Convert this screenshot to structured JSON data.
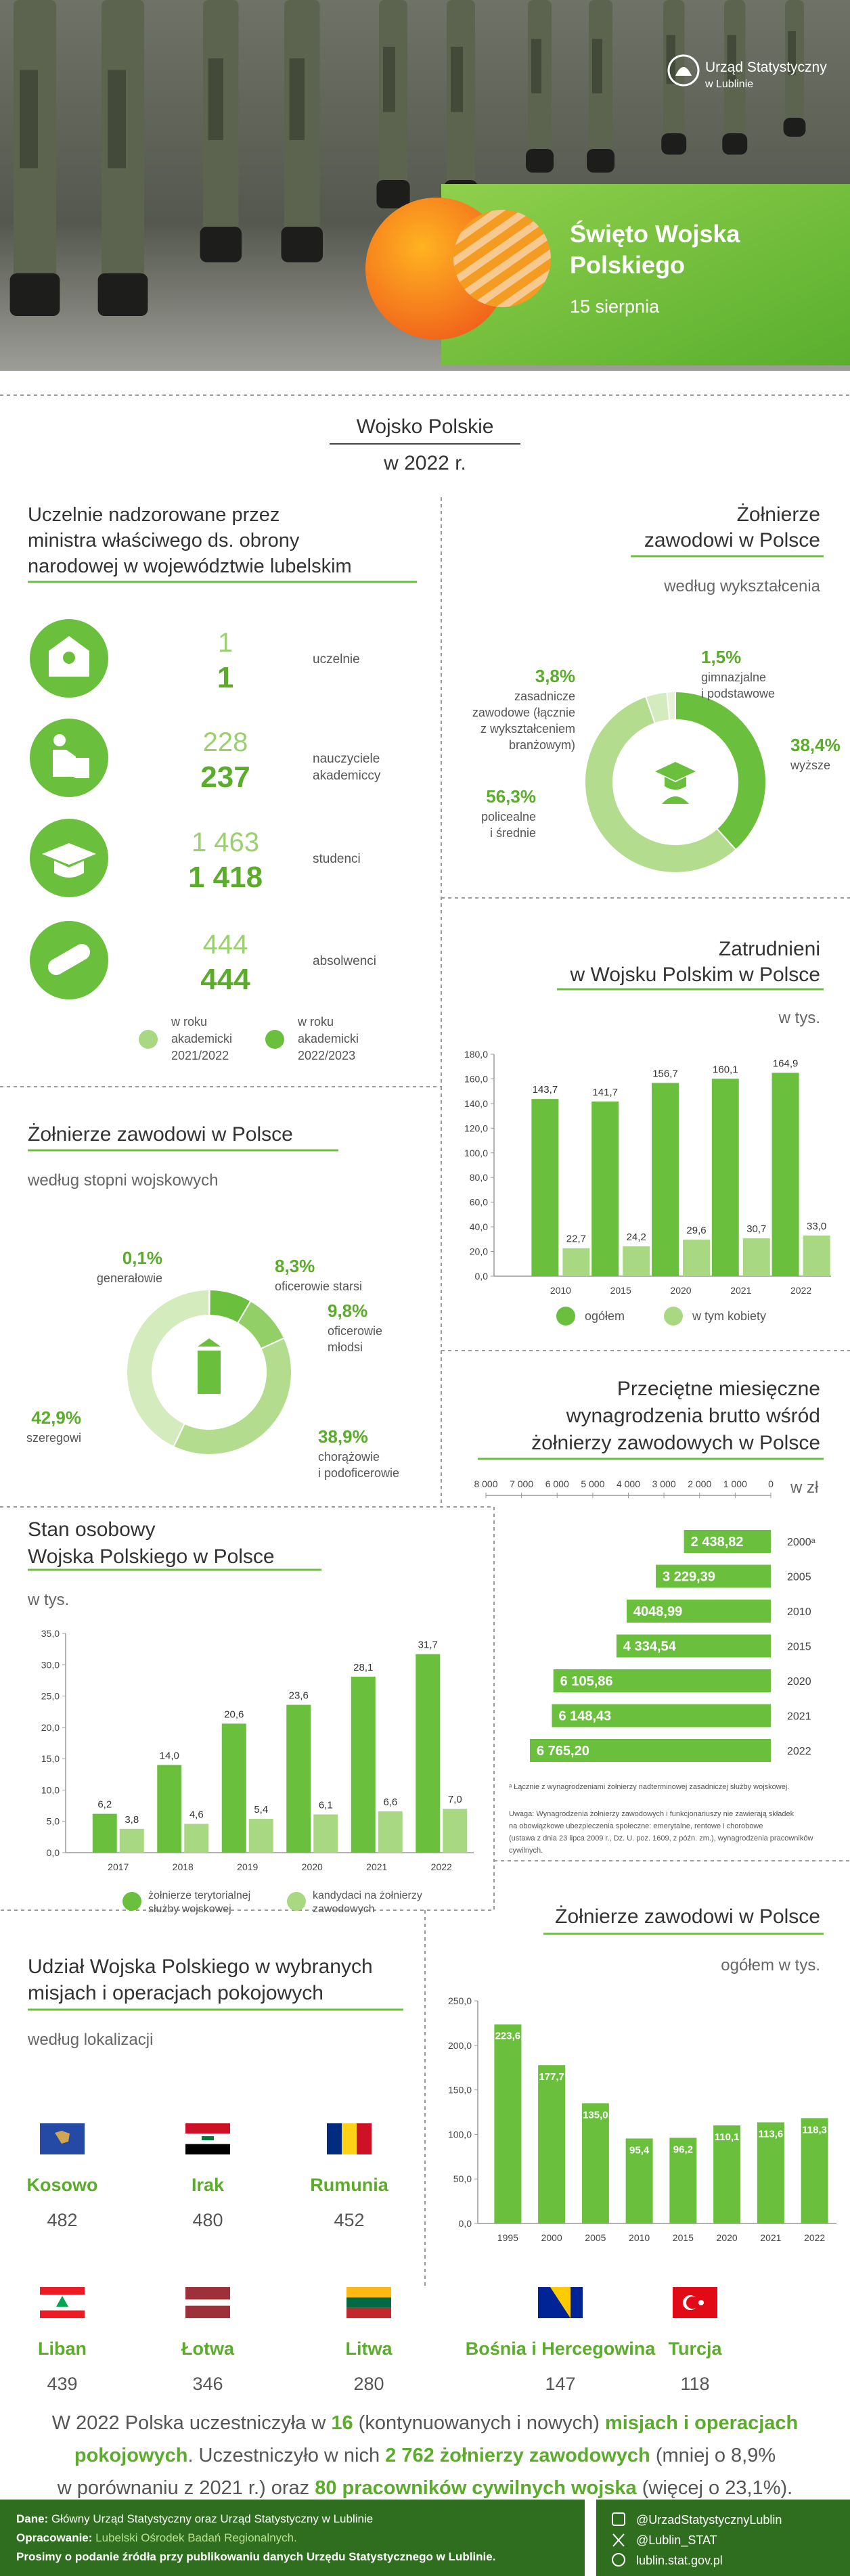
{
  "header": {
    "logo": [
      "Urząd Statystyczny",
      "w Lublinie"
    ],
    "title": [
      "Święto Wojska",
      "Polskiego"
    ],
    "date": "15 sierpnia"
  },
  "intro": [
    "Wojsko Polskie",
    "w 2022 r."
  ],
  "universities": {
    "title": [
      "Uczelnie nadzorowane przez",
      "ministra właściwego ds. obrony",
      "narodowej w województwie lubelskim"
    ],
    "rows": [
      {
        "prev": "1",
        "curr": "1",
        "label": [
          "uczelnie"
        ]
      },
      {
        "prev": "228",
        "curr": "237",
        "label": [
          "nauczyciele",
          "akademiccy"
        ]
      },
      {
        "prev": "1 463",
        "curr": "1 418",
        "label": [
          "studenci"
        ]
      },
      {
        "prev": "444",
        "curr": "444",
        "label": [
          "absolwenci"
        ]
      }
    ],
    "legend": [
      [
        "w roku",
        "akademicki",
        "2021/2022"
      ],
      [
        "w roku",
        "akademicki",
        "2022/2023"
      ]
    ]
  },
  "chart_data": [
    {
      "type": "donut",
      "title": [
        "Żołnierze",
        "zawodowi w Polsce"
      ],
      "subtitle": "według wykształcenia",
      "categories": [
        [
          "wyższe"
        ],
        [
          "policealne",
          "i średnie"
        ],
        [
          "zasadnicze",
          "zawodowe (łącznie",
          "z wykształceniem",
          "branżowym)"
        ],
        [
          "gimnazjalne",
          "i podstawowe"
        ]
      ],
      "values": [
        38.4,
        56.3,
        3.8,
        1.5
      ],
      "value_labels": [
        "38,4%",
        "56,3%",
        "3,8%",
        "1,5%"
      ],
      "colors": [
        "#6abf3c",
        "#b4dc8f",
        "#d3ebbd",
        "#e6f3d9"
      ]
    },
    {
      "type": "bar",
      "title": [
        "Zatrudnieni",
        "w Wojsku Polskim w Polsce"
      ],
      "unit": "w tys.",
      "categories": [
        "2010",
        "2015",
        "2020",
        "2021",
        "2022"
      ],
      "series": [
        {
          "name": "ogółem",
          "color": "#6abf3c",
          "values": [
            143.7,
            141.7,
            156.7,
            160.1,
            164.9
          ],
          "value_labels": [
            "143,7",
            "141,7",
            "156,7",
            "160,1",
            "164,9"
          ]
        },
        {
          "name": "w tym kobiety",
          "color": "#a9d883",
          "values": [
            22.7,
            24.2,
            29.6,
            30.7,
            33.0
          ],
          "value_labels": [
            "22,7",
            "24,2",
            "29,6",
            "30,7",
            "33,0"
          ]
        }
      ],
      "ylim": [
        0,
        180
      ],
      "yticks": [
        {
          "value": 0,
          "label": "0,0"
        },
        {
          "value": 20,
          "label": "20,0"
        },
        {
          "value": 40,
          "label": "40,0"
        },
        {
          "value": 60,
          "label": "60,0"
        },
        {
          "value": 80,
          "label": "80,0"
        },
        {
          "value": 100,
          "label": "100,0"
        },
        {
          "value": 120,
          "label": "120,0"
        },
        {
          "value": 140,
          "label": "140,0"
        },
        {
          "value": 160,
          "label": "160,0"
        },
        {
          "value": 180,
          "label": "180,0"
        }
      ],
      "label_position": "above"
    },
    {
      "type": "donut",
      "title": [
        "Żołnierze zawodowi w Polsce"
      ],
      "subtitle": "według stopni wojskowych",
      "categories": [
        [
          "generałowie"
        ],
        [
          "oficerowie starsi"
        ],
        [
          "oficerowie",
          "młodsi"
        ],
        [
          "chorążowie",
          "i podoficerowie"
        ],
        [
          "szeregowi"
        ]
      ],
      "values": [
        0.1,
        8.3,
        9.8,
        38.9,
        42.9
      ],
      "value_labels": [
        "0,1%",
        "8,3%",
        "9,8%",
        "38,9%",
        "42,9%"
      ],
      "colors": [
        "#3f8a22",
        "#6abf3c",
        "#92cf66",
        "#b4dc8f",
        "#d3ebbd"
      ]
    },
    {
      "type": "hbar",
      "title": [
        "Przeciętne miesięczne",
        "wynagrodzenia brutto wśród",
        "żołnierzy zawodowych w Polsce"
      ],
      "unit": "w zł",
      "categories": [
        "2000ᵃ",
        "2005",
        "2010",
        "2015",
        "2020",
        "2021",
        "2022"
      ],
      "values": [
        2438.82,
        3229.39,
        4048.99,
        4334.54,
        6105.86,
        6148.43,
        6765.2
      ],
      "value_labels": [
        "2 438,82",
        "3 229,39",
        "4048,99",
        "4 334,54",
        "6 105,86",
        "6 148,43",
        "6 765,20"
      ],
      "color": "#6abf3c",
      "xlim": [
        8000,
        0
      ],
      "xticks": [
        {
          "value": 8000,
          "label": "8 000"
        },
        {
          "value": 7000,
          "label": "7 000"
        },
        {
          "value": 6000,
          "label": "6 000"
        },
        {
          "value": 5000,
          "label": "5 000"
        },
        {
          "value": 4000,
          "label": "4 000"
        },
        {
          "value": 3000,
          "label": "3 000"
        },
        {
          "value": 2000,
          "label": "2 000"
        },
        {
          "value": 1000,
          "label": "1 000"
        },
        0
      ],
      "notes": [
        "ᵃ Łącznie z wynagrodzeniami żołnierzy nadterminowej zasadniczej służby wojskowej.",
        "Uwaga: Wynagrodzenia żołnierzy zawodowych i funkcjonariuszy nie zawierają składek",
        "na obowiązkowe ubezpieczenia społeczne: emerytalne, rentowe i chorobowe",
        "(ustawa z dnia 23 lipca 2009 r., Dz. U. poz. 1609, z późn. zm.), wynagrodzenia pracowników",
        "cywilnych."
      ]
    },
    {
      "type": "bar",
      "title": [
        "Stan osobowy",
        "Wojska Polskiego w Polsce"
      ],
      "unit": "w tys.",
      "categories": [
        "2017",
        "2018",
        "2019",
        "2020",
        "2021",
        "2022"
      ],
      "series": [
        {
          "name": "żołnierze terytorialnej służby wojskowej",
          "color": "#6abf3c",
          "values": [
            6.2,
            14.0,
            20.6,
            23.6,
            28.1,
            31.7
          ],
          "value_labels": [
            "6,2",
            "14,0",
            "20,6",
            "23,6",
            "28,1",
            "31,7"
          ]
        },
        {
          "name": "kandydaci na żołnierzy zawodowych",
          "color": "#a9d883",
          "values": [
            3.8,
            4.6,
            5.4,
            6.1,
            6.6,
            7.0
          ],
          "value_labels": [
            "3,8",
            "4,6",
            "5,4",
            "6,1",
            "6,6",
            "7,0"
          ]
        }
      ],
      "ylim": [
        0,
        35
      ],
      "yticks": [
        {
          "value": 0,
          "label": "0,0"
        },
        {
          "value": 5,
          "label": "5,0"
        },
        {
          "value": 10,
          "label": "10,0"
        },
        {
          "value": 15,
          "label": "15,0"
        },
        {
          "value": 20,
          "label": "20,0"
        },
        {
          "value": 25,
          "label": "25,0"
        },
        {
          "value": 30,
          "label": "30,0"
        },
        {
          "value": 35,
          "label": "35,0"
        }
      ],
      "label_position": "above"
    },
    {
      "type": "bar",
      "title": [
        "Żołnierze zawodowi w Polsce"
      ],
      "unit": "ogółem w tys.",
      "categories": [
        "1995",
        "2000",
        "2005",
        "2010",
        "2015",
        "2020",
        "2021",
        "2022"
      ],
      "values": [
        223.6,
        177.7,
        135.0,
        95.4,
        96.2,
        110.1,
        113.6,
        118.3
      ],
      "value_labels": [
        "223,6",
        "177,7",
        "135,0",
        "95,4",
        "96,2",
        "110,1",
        "113,6",
        "118,3"
      ],
      "color": "#6abf3c",
      "ylim": [
        0,
        250
      ],
      "yticks": [
        {
          "value": 0,
          "label": "0,0"
        },
        {
          "value": 50,
          "label": "50,0"
        },
        {
          "value": 100,
          "label": "100,0"
        },
        {
          "value": 150,
          "label": "150,0"
        },
        {
          "value": 200,
          "label": "200,0"
        },
        {
          "value": 250,
          "label": "250,0"
        }
      ],
      "label_position": "inside"
    }
  ],
  "missions": {
    "title": [
      "Udział Wojska Polskiego w wybranych",
      "misjach i operacjach pokojowych"
    ],
    "subtitle": "według lokalizacji",
    "items": [
      {
        "name": "Kosowo",
        "value": 482
      },
      {
        "name": "Irak",
        "value": 480
      },
      {
        "name": "Rumunia",
        "value": 452
      },
      {
        "name": "Liban",
        "value": 439
      },
      {
        "name": "Łotwa",
        "value": 346
      },
      {
        "name": "Litwa",
        "value": 280
      },
      {
        "name": "Bośnia i Hercegowina",
        "value": 147
      },
      {
        "name": "Turcja",
        "value": 118
      }
    ]
  },
  "summary": [
    [
      {
        "text": "W 2022 Polska uczestniczyła w "
      },
      {
        "text": "16",
        "highlight": true
      },
      {
        "text": " (kontynuowanych i nowych) "
      },
      {
        "text": "misjach i operacjach",
        "highlight": true
      }
    ],
    [
      {
        "text": "pokojowych",
        "highlight": true
      },
      {
        "text": ". Uczestniczyło w nich "
      },
      {
        "text": "2 762 żołnierzy zawodowych",
        "highlight": true
      },
      {
        "text": " (mniej o 8,9%"
      }
    ],
    [
      {
        "text": "w porównaniu z 2021 r.) oraz "
      },
      {
        "text": "80 pracowników cywilnych wojska",
        "highlight": true
      },
      {
        "text": " (więcej o 23,1%)."
      }
    ]
  ],
  "footer": {
    "lines": [
      {
        "label": "Dane:",
        "text": "Główny Urząd Statystyczny oraz Urząd Statystyczny w Lublinie"
      },
      {
        "label": "Opracowanie:",
        "text": "Lubelski Ośrodek Badań Regionalnych."
      },
      {
        "text": "Prosimy o podanie źródła przy publikowaniu danych Urzędu Statystycznego w Lublinie."
      }
    ],
    "social": [
      "@UrzadStatystycznyLublin",
      "@Lublin_STAT",
      "lublin.stat.gov.pl"
    ]
  }
}
